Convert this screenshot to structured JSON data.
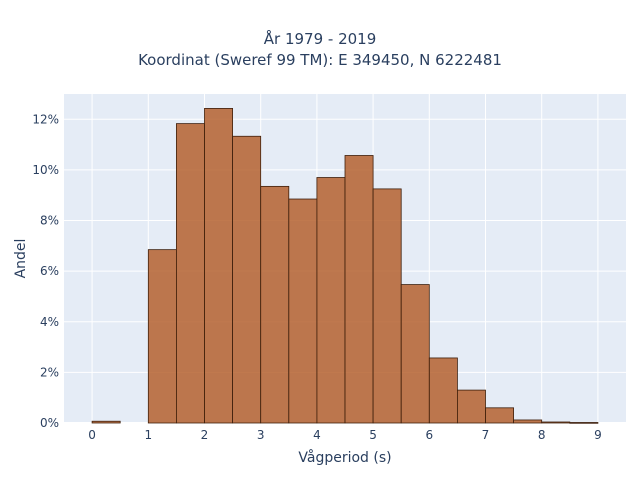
{
  "chart_data": {
    "type": "bar",
    "title": "År 1979 - 2019",
    "subtitle": "Koordinat (Sweref 99 TM): E 349450, N 6222481",
    "xlabel": "Vågperiod (s)",
    "ylabel": "Andel",
    "xlim": [
      -0.5,
      9.5
    ],
    "ylim": [
      0,
      0.13
    ],
    "x_ticks": [
      0,
      1,
      2,
      3,
      4,
      5,
      6,
      7,
      8,
      9
    ],
    "y_ticks": [
      0,
      0.02,
      0.04,
      0.06,
      0.08,
      0.1,
      0.12
    ],
    "y_tick_labels": [
      "0%",
      "2%",
      "4%",
      "6%",
      "8%",
      "10%",
      "12%"
    ],
    "bin_width": 0.5,
    "bins": [
      {
        "x0": 0.0,
        "x1": 0.5,
        "value": 0.0007
      },
      {
        "x0": 1.0,
        "x1": 1.5,
        "value": 0.0685
      },
      {
        "x0": 1.5,
        "x1": 2.0,
        "value": 0.1183
      },
      {
        "x0": 2.0,
        "x1": 2.5,
        "value": 0.1243
      },
      {
        "x0": 2.5,
        "x1": 3.0,
        "value": 0.1133
      },
      {
        "x0": 3.0,
        "x1": 3.5,
        "value": 0.0935
      },
      {
        "x0": 3.5,
        "x1": 4.0,
        "value": 0.0885
      },
      {
        "x0": 4.0,
        "x1": 4.5,
        "value": 0.097
      },
      {
        "x0": 4.5,
        "x1": 5.0,
        "value": 0.1057
      },
      {
        "x0": 5.0,
        "x1": 5.5,
        "value": 0.0925
      },
      {
        "x0": 5.5,
        "x1": 6.0,
        "value": 0.0547
      },
      {
        "x0": 6.0,
        "x1": 6.5,
        "value": 0.0257
      },
      {
        "x0": 6.5,
        "x1": 7.0,
        "value": 0.013
      },
      {
        "x0": 7.0,
        "x1": 7.5,
        "value": 0.006
      },
      {
        "x0": 7.5,
        "x1": 8.0,
        "value": 0.0012
      },
      {
        "x0": 8.0,
        "x1": 8.5,
        "value": 0.0004
      },
      {
        "x0": 8.5,
        "x1": 9.0,
        "value": 0.0002
      }
    ],
    "grid": true,
    "colors": {
      "bar_fill": "#b5612f",
      "bar_edge": "#3d1e0b",
      "plot_background": "#e5ecf6",
      "grid": "#ffffff"
    }
  }
}
